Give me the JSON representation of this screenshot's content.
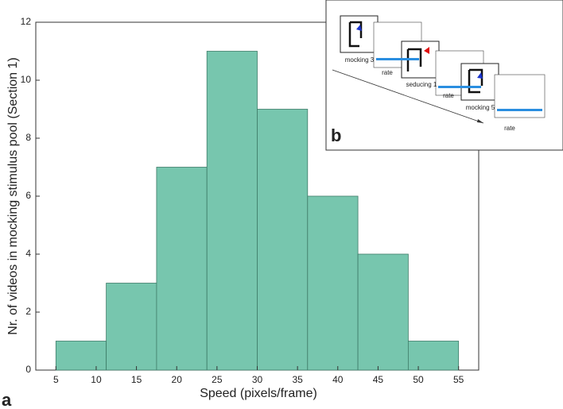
{
  "chart_data": {
    "type": "histogram",
    "xlabel": "Speed (pixels/frame)",
    "ylabel": "Nr. of videos in mocking stimulus pool (Section 1)",
    "bins": [
      5,
      11.25,
      17.5,
      23.75,
      30,
      36.25,
      42.5,
      48.75,
      55
    ],
    "values": [
      1,
      3,
      7,
      11,
      9,
      6,
      4,
      1
    ],
    "color": "#77c6ae",
    "edgecolor": "#3e7b68",
    "xlim": [
      2.5,
      57.5
    ],
    "xticks": [
      5,
      10,
      15,
      20,
      25,
      30,
      35,
      40,
      45,
      50,
      55
    ],
    "ylim": [
      0,
      12
    ],
    "yticks": [
      0,
      2,
      4,
      6,
      8,
      10,
      12
    ]
  },
  "panel_label": "a",
  "inset": {
    "panel_label": "b",
    "captions": [
      "mocking 3",
      "rate",
      "seducing 1",
      "rate",
      "mocking 5",
      "rate"
    ]
  }
}
